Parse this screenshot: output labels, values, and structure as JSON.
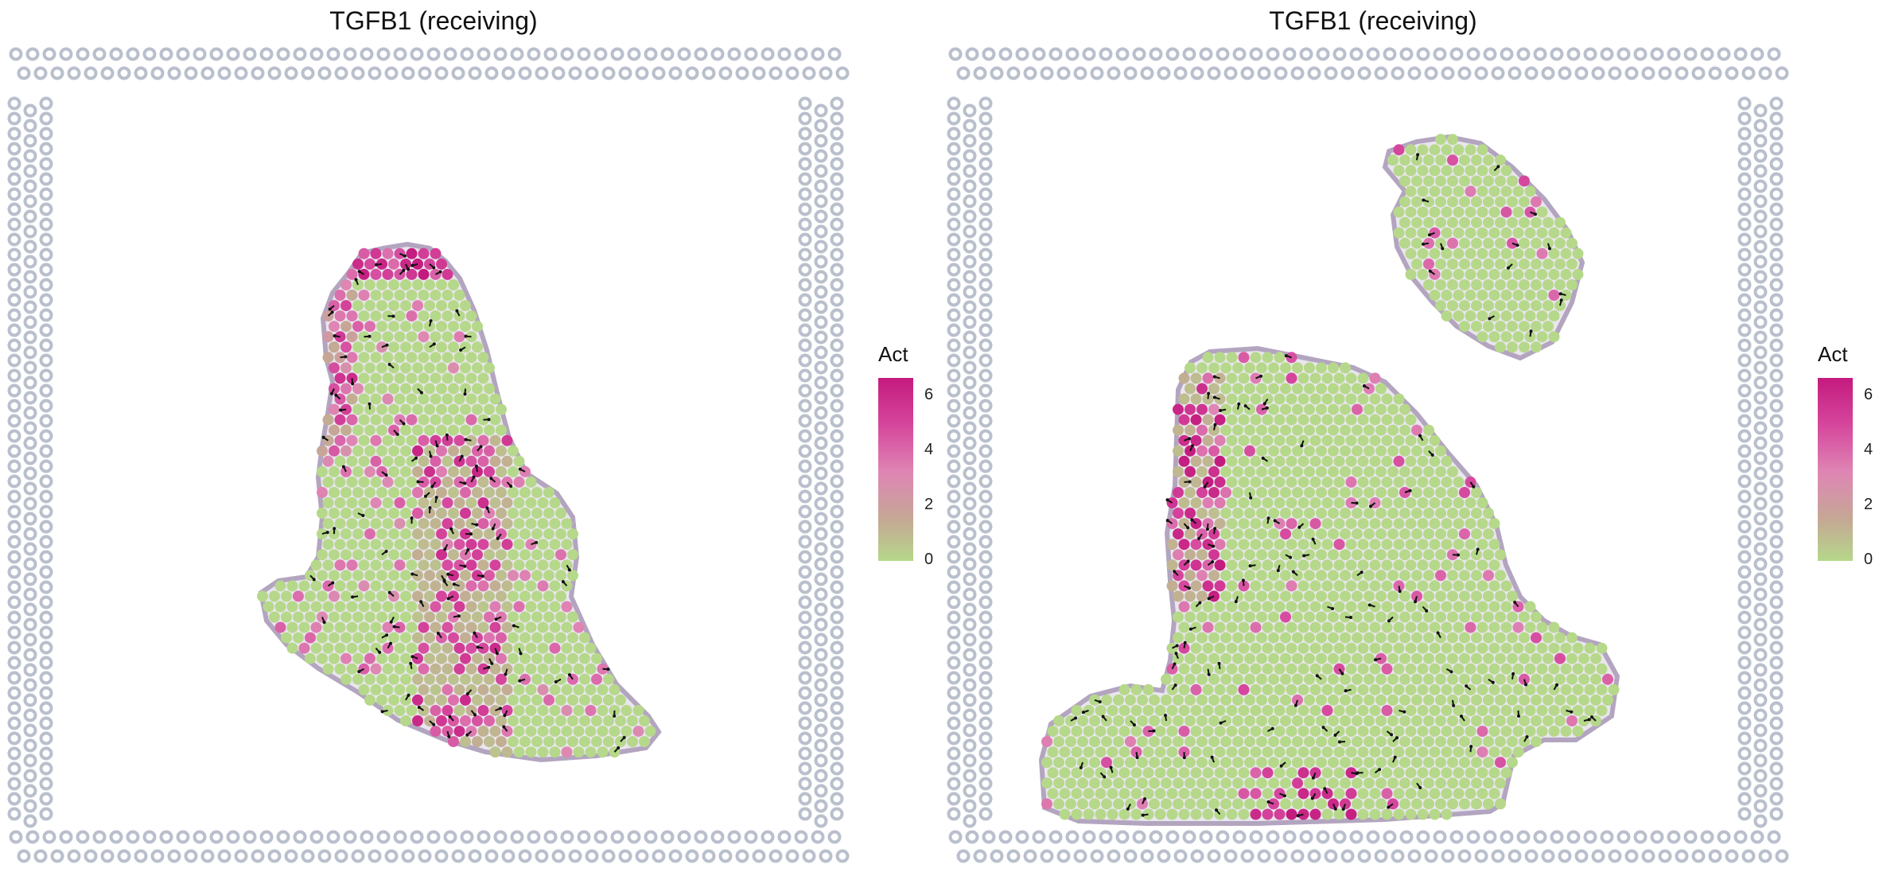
{
  "chart_data": [
    {
      "type": "scatter",
      "title": "TGFB1 (receiving)",
      "legend": {
        "title": "Act",
        "ticks": [
          0,
          2,
          4,
          6
        ],
        "range": [
          0,
          6.5
        ],
        "low_color": "#b6d88a",
        "mid_color": "#df86b4",
        "high_color": "#c41b7e",
        "position": "right"
      }
    },
    {
      "type": "scatter",
      "title": "TGFB1 (receiving)",
      "legend": {
        "title": "Act",
        "ticks": [
          0,
          2,
          4,
          6
        ],
        "range": [
          0,
          6.5
        ],
        "low_color": "#b6d88a",
        "mid_color": "#df86b4",
        "high_color": "#c41b7e",
        "position": "right"
      }
    }
  ]
}
